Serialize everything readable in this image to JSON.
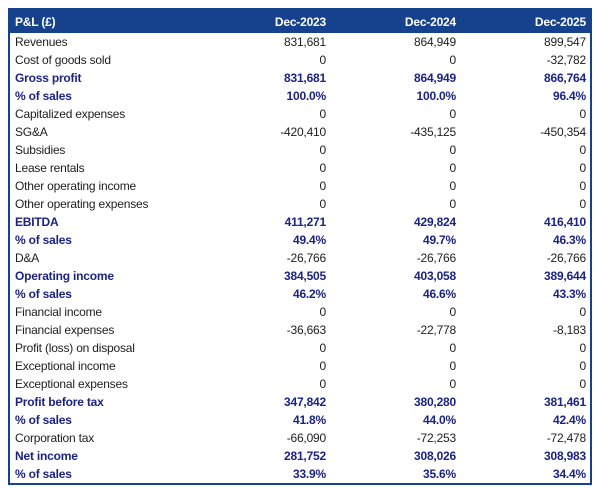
{
  "colors": {
    "header_bg": "#16418c",
    "header_text": "#ffffff",
    "border": "#16418c",
    "bold_row_text": "#1b2383",
    "body_text": "#1d1d1d",
    "background": "#ffffff"
  },
  "chart_data": {
    "type": "table",
    "title": "P&L (£)",
    "columns": [
      "P&L (£)",
      "Dec-2023",
      "Dec-2024",
      "Dec-2025"
    ],
    "header": {
      "label": "P&L (£)",
      "cols": [
        "Dec-2023",
        "Dec-2024",
        "Dec-2025"
      ]
    },
    "rows": [
      {
        "label": "Revenues",
        "values": [
          "831,681",
          "864,949",
          "899,547"
        ],
        "bold": false
      },
      {
        "label": "Cost of goods sold",
        "values": [
          "0",
          "0",
          "-32,782"
        ],
        "bold": false
      },
      {
        "label": "Gross profit",
        "values": [
          "831,681",
          "864,949",
          "866,764"
        ],
        "bold": true
      },
      {
        "label": "% of sales",
        "values": [
          "100.0%",
          "100.0%",
          "96.4%"
        ],
        "bold": true
      },
      {
        "label": "Capitalized expenses",
        "values": [
          "0",
          "0",
          "0"
        ],
        "bold": false
      },
      {
        "label": "SG&A",
        "values": [
          "-420,410",
          "-435,125",
          "-450,354"
        ],
        "bold": false
      },
      {
        "label": "Subsidies",
        "values": [
          "0",
          "0",
          "0"
        ],
        "bold": false
      },
      {
        "label": "Lease rentals",
        "values": [
          "0",
          "0",
          "0"
        ],
        "bold": false
      },
      {
        "label": "Other operating income",
        "values": [
          "0",
          "0",
          "0"
        ],
        "bold": false
      },
      {
        "label": "Other operating expenses",
        "values": [
          "0",
          "0",
          "0"
        ],
        "bold": false
      },
      {
        "label": "EBITDA",
        "values": [
          "411,271",
          "429,824",
          "416,410"
        ],
        "bold": true
      },
      {
        "label": "% of sales",
        "values": [
          "49.4%",
          "49.7%",
          "46.3%"
        ],
        "bold": true
      },
      {
        "label": "D&A",
        "values": [
          "-26,766",
          "-26,766",
          "-26,766"
        ],
        "bold": false
      },
      {
        "label": "Operating income",
        "values": [
          "384,505",
          "403,058",
          "389,644"
        ],
        "bold": true
      },
      {
        "label": "% of sales",
        "values": [
          "46.2%",
          "46.6%",
          "43.3%"
        ],
        "bold": true
      },
      {
        "label": "Financial income",
        "values": [
          "0",
          "0",
          "0"
        ],
        "bold": false
      },
      {
        "label": "Financial expenses",
        "values": [
          "-36,663",
          "-22,778",
          "-8,183"
        ],
        "bold": false
      },
      {
        "label": "Profit (loss) on disposal",
        "values": [
          "0",
          "0",
          "0"
        ],
        "bold": false
      },
      {
        "label": "Exceptional income",
        "values": [
          "0",
          "0",
          "0"
        ],
        "bold": false
      },
      {
        "label": "Exceptional expenses",
        "values": [
          "0",
          "0",
          "0"
        ],
        "bold": false
      },
      {
        "label": "Profit before tax",
        "values": [
          "347,842",
          "380,280",
          "381,461"
        ],
        "bold": true
      },
      {
        "label": "% of sales",
        "values": [
          "41.8%",
          "44.0%",
          "42.4%"
        ],
        "bold": true
      },
      {
        "label": "Corporation tax",
        "values": [
          "-66,090",
          "-72,253",
          "-72,478"
        ],
        "bold": false
      },
      {
        "label": "Net income",
        "values": [
          "281,752",
          "308,026",
          "308,983"
        ],
        "bold": true
      },
      {
        "label": "% of sales",
        "values": [
          "33.9%",
          "35.6%",
          "34.4%"
        ],
        "bold": true
      }
    ]
  }
}
